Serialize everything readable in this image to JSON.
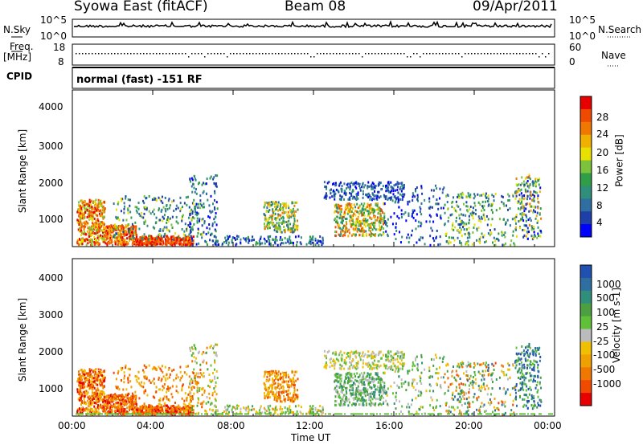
{
  "header": {
    "station": "Syowa East (fitACF)",
    "beam": "Beam 08",
    "date": "09/Apr/2011"
  },
  "top_panels": {
    "nsky_label": "N.Sky",
    "nsky_top": "10^5",
    "nsky_bottom": "10^0",
    "nsearch_label": "N.Search",
    "nsearch_top": "10^5",
    "nsearch_bottom": "10^0",
    "freq_label": "Freq.",
    "freq_unit": "[MHz]",
    "freq_top": "18",
    "freq_bottom": "8",
    "nave_label": "Nave",
    "nave_top": "60",
    "nave_bottom": "0",
    "cpid_label": "CPID",
    "cpid_value": "normal (fast) -151 RF"
  },
  "chart_data": [
    {
      "type": "heatmap",
      "name": "power",
      "xlabel": "",
      "ylabel": "Slant Range [km]",
      "x_ticks": [
        "00:00",
        "04:00",
        "08:00",
        "12:00",
        "16:00",
        "20:00",
        "00:00"
      ],
      "xlim_hours": [
        0,
        24
      ],
      "y_ticks": [
        "1000",
        "2000",
        "3000",
        "4000"
      ],
      "ylim": [
        180,
        4500
      ],
      "colorbar": {
        "label": "Power [dB]",
        "ticks": [
          "4",
          "8",
          "12",
          "16",
          "20",
          "24",
          "28"
        ],
        "range": [
          0,
          30
        ],
        "colors": [
          "#0000ff",
          "#1e3fa8",
          "#2e6ea0",
          "#2f8f7a",
          "#2f9e46",
          "#7cc23a",
          "#e8e000",
          "#f0b000",
          "#f07800",
          "#ef4a00",
          "#e80000"
        ]
      }
    },
    {
      "type": "heatmap",
      "name": "velocity",
      "xlabel": "Time UT",
      "ylabel": "Slant Range [km]",
      "x_ticks": [
        "00:00",
        "04:00",
        "08:00",
        "12:00",
        "16:00",
        "20:00",
        "00:00"
      ],
      "xlim_hours": [
        0,
        24
      ],
      "y_ticks": [
        "1000",
        "2000",
        "3000",
        "4000"
      ],
      "ylim": [
        180,
        4500
      ],
      "colorbar": {
        "label": "Velocity [m s-1]",
        "ticks": [
          "1000",
          "500",
          "100",
          "25",
          "-25",
          "-100",
          "-500",
          "-1000"
        ],
        "colors": [
          "#2050b0",
          "#2e6ea0",
          "#2f8f7a",
          "#4ca040",
          "#60c038",
          "#bbbbbb",
          "#f0c000",
          "#f0a000",
          "#f07800",
          "#ef4a00",
          "#e80000"
        ]
      }
    }
  ]
}
